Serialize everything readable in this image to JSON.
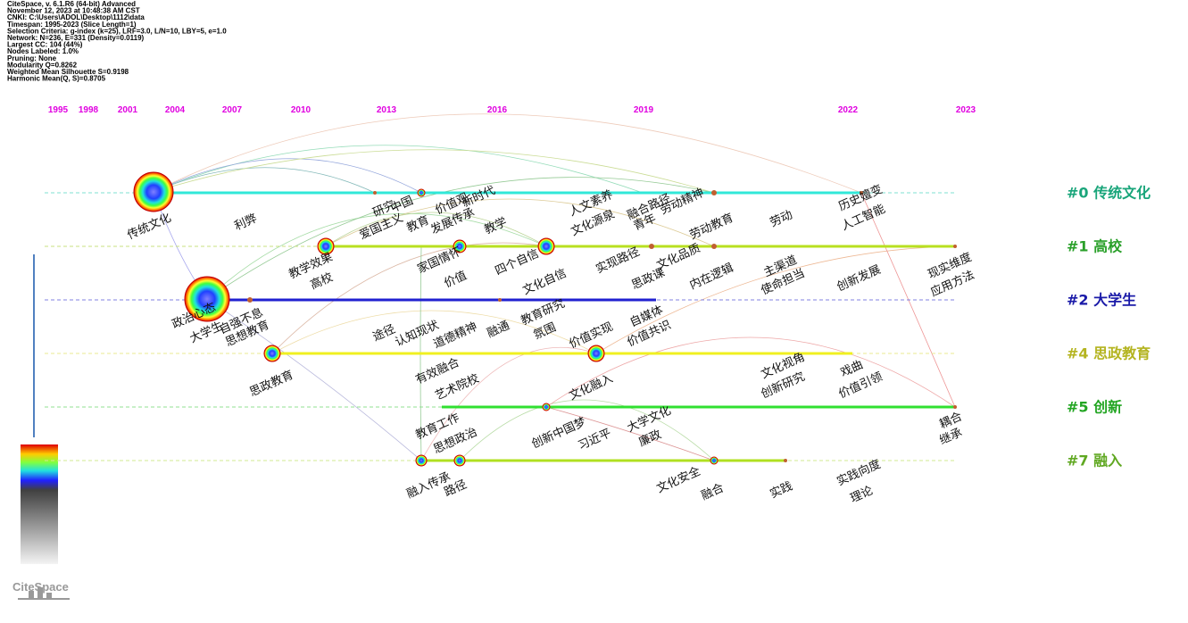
{
  "header": {
    "lines": [
      "CiteSpace, v. 6.1.R6 (64-bit) Advanced",
      "November 12, 2023 at 10:48:38 AM CST",
      "CNKI: C:\\Users\\ADOL\\Desktop\\1112\\data",
      "Timespan: 1995-2023 (Slice Length=1)",
      "Selection Criteria: g-index (k=25), LRF=3.0, L/N=10, LBY=5, e=1.0",
      "Network: N=236, E=331 (Density=0.0119)",
      "Largest CC: 104 (44%)",
      "Nodes Labeled: 1.0%",
      "Pruning: None",
      "Modularity Q=0.8262",
      "Weighted Mean Silhouette S=0.9198",
      "Harmonic Mean(Q, S)=0.8705"
    ]
  },
  "timeline": {
    "years": [
      1995,
      1998,
      2001,
      2004,
      2007,
      2010,
      2013,
      2016,
      2019,
      2022,
      2023
    ]
  },
  "clusters": [
    {
      "label": "#0 传统文化"
    },
    {
      "label": "#1 高校"
    },
    {
      "label": "#2 大学生"
    },
    {
      "label": "#4 思政教育"
    },
    {
      "label": "#5 创新"
    },
    {
      "label": "#7 融入"
    }
  ],
  "keywords": [
    "传统文化",
    "利弊",
    "研究",
    "中国",
    "爱国主义",
    "教育",
    "价值观",
    "发展传承",
    "新时代",
    "教学",
    "人文素养",
    "文化源泉",
    "融合路径",
    "青年",
    "劳动精神",
    "劳动教育",
    "劳动",
    "历史嬗变",
    "人工智能",
    "教学效果",
    "高校",
    "家国情怀",
    "价值",
    "四个自信",
    "文化自信",
    "实现路径",
    "文化品质",
    "思政课",
    "内在逻辑",
    "主渠道",
    "使命担当",
    "创新发展",
    "现实维度",
    "应用方法",
    "政治心态",
    "大学生",
    "自强不息",
    "思想教育",
    "途径",
    "认知现状",
    "道德精神",
    "融通",
    "教育研究",
    "氛围",
    "价值实现",
    "自媒体",
    "价值共识",
    "思政教育",
    "有效融合",
    "艺术院校",
    "文化融入",
    "文化视角",
    "创新研究",
    "戏曲",
    "价值引领",
    "教育工作",
    "思想政治",
    "创新中国梦",
    "习近平",
    "大学文化",
    "廉政",
    "耦合",
    "继承",
    "融入传承",
    "路径",
    "文化安全",
    "融合",
    "实践",
    "实践向度",
    "理论"
  ],
  "logo": "CiteSpace"
}
